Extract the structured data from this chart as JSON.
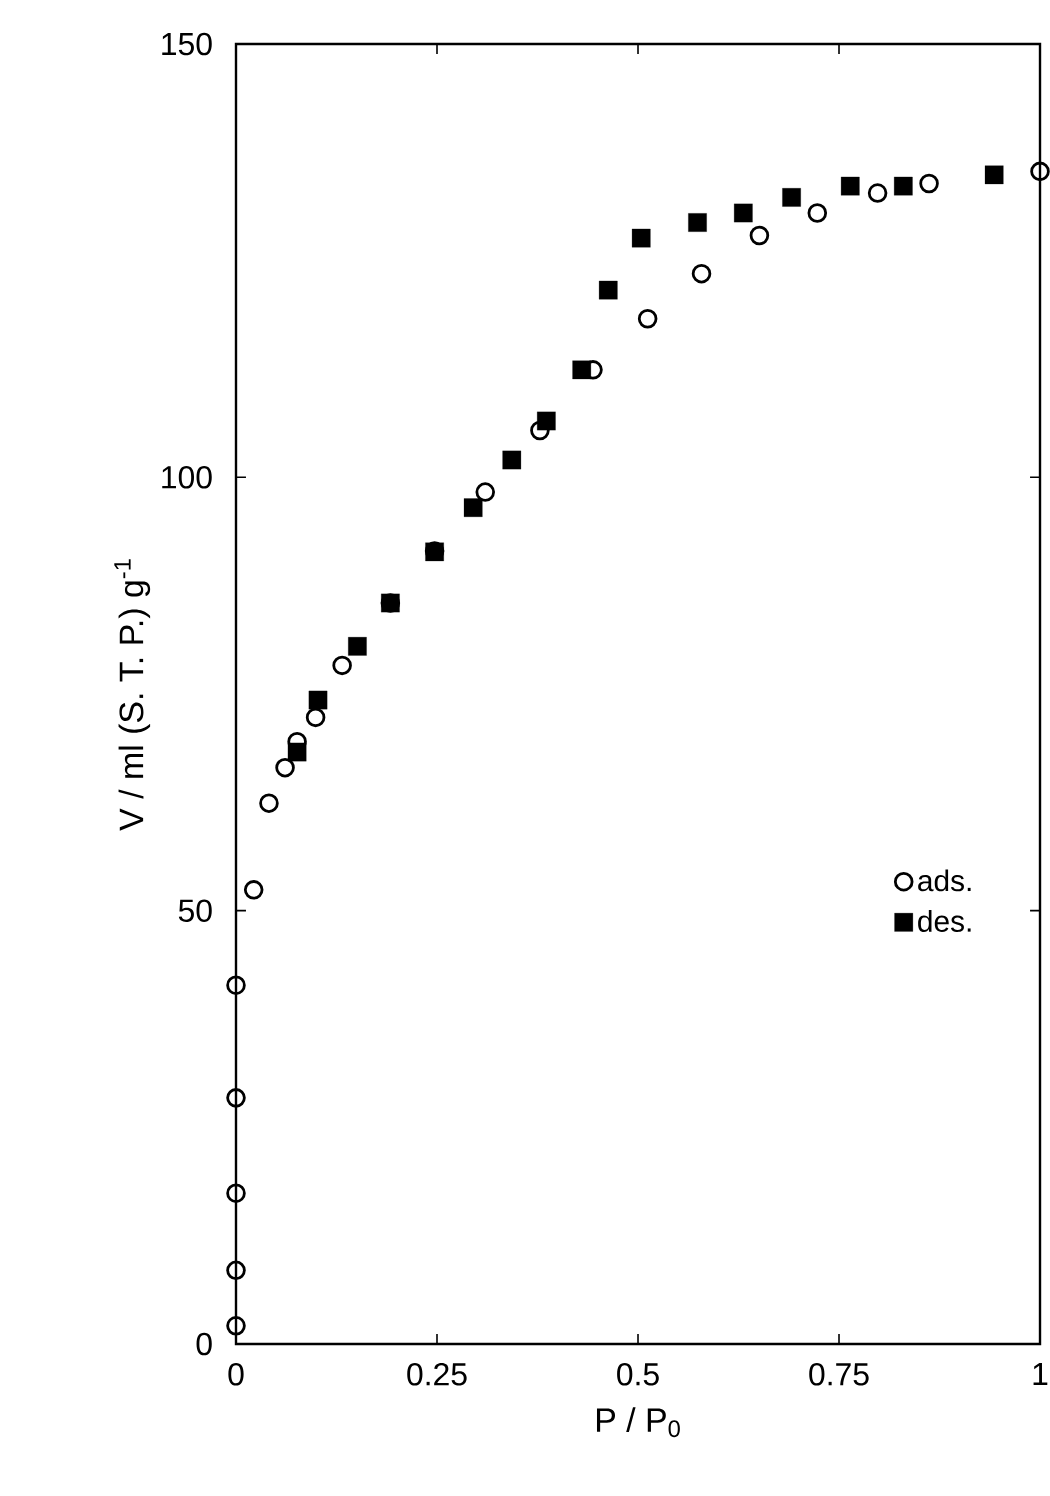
{
  "chart_data": {
    "type": "scatter",
    "xlabel": "P / P$_{0}$",
    "ylabel": "V / ml (S. T. P.) g$^{-1}$",
    "xlim": [
      0,
      1
    ],
    "ylim": [
      0,
      150
    ],
    "xticks": [
      0,
      0.25,
      0.5,
      0.75,
      1
    ],
    "yticks": [
      0,
      50,
      100,
      150
    ],
    "legend": "right",
    "grid": false,
    "series": [
      {
        "name": "ads.",
        "color": "#000000",
        "marker": "circle",
        "x": [
          0,
          0,
          0,
          0,
          0,
          0.022,
          0.041,
          0.061,
          0.076,
          0.099,
          0.132,
          0.192,
          0.247,
          0.31,
          0.378,
          0.444,
          0.512,
          0.579,
          0.651,
          0.723,
          0.798,
          0.862,
          1.0
        ],
        "values": [
          2.1,
          8.5,
          17.4,
          28.4,
          41.4,
          52.4,
          62.4,
          66.5,
          69.5,
          72.3,
          78.3,
          85.5,
          91.5,
          98.3,
          105.4,
          112.4,
          118.3,
          123.5,
          127.9,
          130.5,
          132.8,
          133.9,
          135.3
        ]
      },
      {
        "name": "des.",
        "color": "#000000",
        "marker": "square",
        "x": [
          0.076,
          0.102,
          0.151,
          0.192,
          0.247,
          0.295,
          0.343,
          0.386,
          0.43,
          0.463,
          0.504,
          0.574,
          0.631,
          0.691,
          0.764,
          0.83,
          0.943
        ],
        "values": [
          68.3,
          74.3,
          80.5,
          85.5,
          91.4,
          96.5,
          102.0,
          106.5,
          112.4,
          121.6,
          127.6,
          129.4,
          130.5,
          132.3,
          133.6,
          133.6,
          134.9
        ]
      }
    ]
  }
}
